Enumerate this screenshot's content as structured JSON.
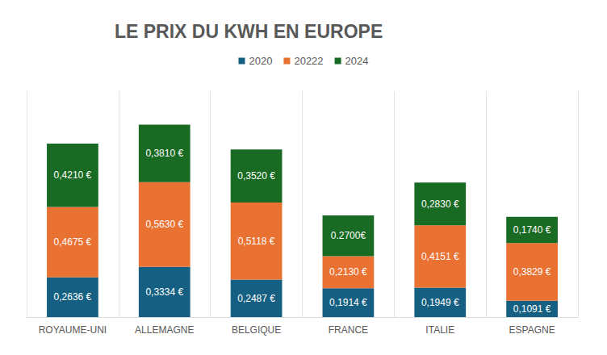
{
  "chart_data": {
    "type": "bar",
    "title": "LE PRIX DU KWH EN EUROPE",
    "categories": [
      "ROYAUME-UNI",
      "ALLEMAGNE",
      "BELGIQUE",
      "FRANCE",
      "ITALIE",
      "ESPAGNE"
    ],
    "stacked": true,
    "data_labels": true,
    "tick_labels": "x",
    "grid": true,
    "legend": "top",
    "series": [
      {
        "name": "2020",
        "color": "#156082",
        "values": [
          0.2636,
          0.3334,
          0.2487,
          0.1914,
          0.1949,
          0.1091
        ],
        "value_labels": [
          "0,2636 €",
          "0,3334 €",
          "0,2487 €",
          "0,1914 €",
          "0,1949 €",
          "0,1091 €"
        ]
      },
      {
        "name": "20222",
        "color": "#E97132",
        "values": [
          0.4675,
          0.563,
          0.5118,
          0.213,
          0.4151,
          0.3829
        ],
        "value_labels": [
          "0,4675 €",
          "0,5630 €",
          "0,5118 €",
          "0,2130 €",
          "0,4151 €",
          "0,3829 €"
        ]
      },
      {
        "name": "2024",
        "color": "#196B24",
        "values": [
          0.421,
          0.381,
          0.352,
          0.27,
          0.283,
          0.174
        ],
        "value_labels": [
          "0,4210 €",
          "0,3810 €",
          "0,3520 €",
          "0.2700€",
          "0,2830 €",
          "0,1740 €"
        ]
      }
    ]
  }
}
